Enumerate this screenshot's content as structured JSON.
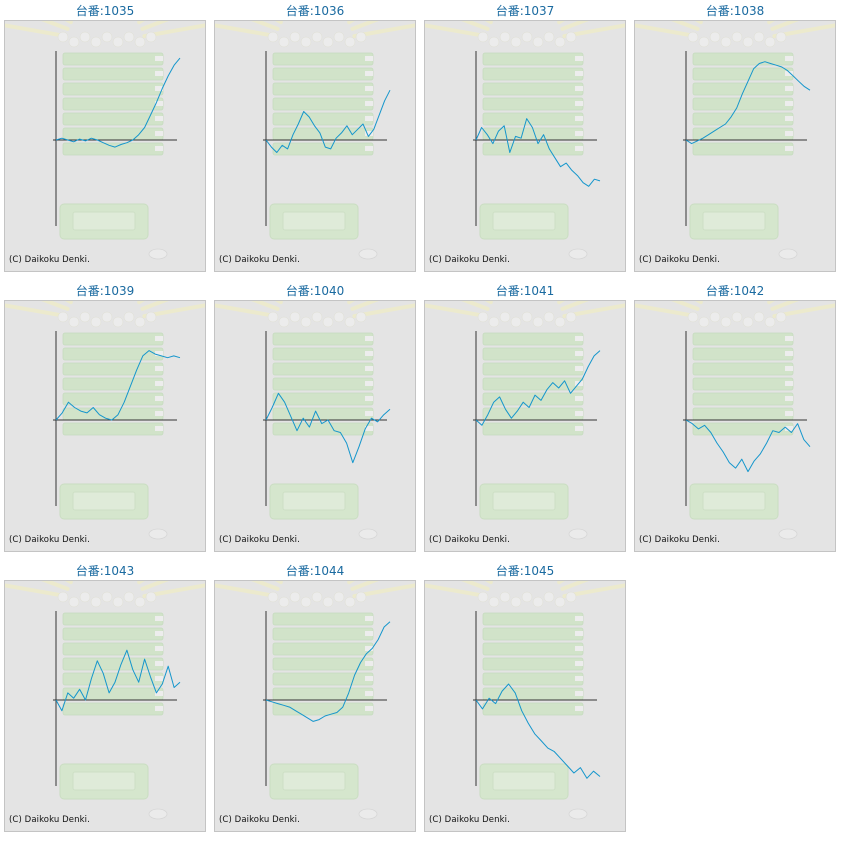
{
  "copyright": "(C) Daikoku Denki.",
  "colors": {
    "title": "#1a6aa0",
    "line": "#1596cc",
    "axis": "#333333",
    "panel_bg": "#e4e4e4",
    "panel_border": "#c4c4c4"
  },
  "chart_data": [
    {
      "type": "line",
      "title": "台番:1035",
      "xlabel": "",
      "ylabel": "",
      "grid": false,
      "values": [
        0,
        2,
        0,
        -2,
        1,
        -1,
        2,
        0,
        -3,
        -6,
        -8,
        -5,
        -3,
        0,
        6,
        14,
        28,
        42,
        58,
        72,
        84,
        92
      ]
    },
    {
      "type": "line",
      "title": "台番:1036",
      "xlabel": "",
      "ylabel": "",
      "grid": false,
      "values": [
        0,
        -8,
        -14,
        -6,
        -10,
        6,
        18,
        32,
        26,
        16,
        8,
        -8,
        -10,
        2,
        8,
        16,
        6,
        12,
        18,
        4,
        12,
        28,
        44,
        56
      ]
    },
    {
      "type": "line",
      "title": "台番:1037",
      "xlabel": "",
      "ylabel": "",
      "grid": false,
      "values": [
        0,
        14,
        6,
        -4,
        10,
        16,
        -14,
        4,
        2,
        24,
        14,
        -4,
        6,
        -10,
        -20,
        -30,
        -26,
        -34,
        -40,
        -48,
        -52,
        -44,
        -46
      ]
    },
    {
      "type": "line",
      "title": "台番:1038",
      "xlabel": "",
      "ylabel": "",
      "grid": false,
      "values": [
        0,
        -4,
        -1,
        2,
        6,
        10,
        14,
        18,
        26,
        36,
        52,
        66,
        80,
        86,
        88,
        86,
        84,
        82,
        78,
        72,
        66,
        60,
        56
      ]
    },
    {
      "type": "line",
      "title": "台番:1039",
      "xlabel": "",
      "ylabel": "",
      "grid": false,
      "values": [
        0,
        8,
        20,
        14,
        10,
        8,
        14,
        6,
        2,
        0,
        6,
        20,
        38,
        56,
        72,
        78,
        74,
        72,
        70,
        72,
        70
      ]
    },
    {
      "type": "line",
      "title": "台番:1040",
      "xlabel": "",
      "ylabel": "",
      "grid": false,
      "values": [
        0,
        14,
        30,
        20,
        4,
        -12,
        2,
        -8,
        10,
        -4,
        0,
        -12,
        -14,
        -26,
        -48,
        -30,
        -10,
        2,
        -2,
        6,
        12
      ]
    },
    {
      "type": "line",
      "title": "台番:1041",
      "xlabel": "",
      "ylabel": "",
      "grid": false,
      "values": [
        0,
        -6,
        6,
        20,
        26,
        12,
        2,
        10,
        20,
        14,
        28,
        22,
        34,
        42,
        36,
        44,
        30,
        38,
        46,
        60,
        72,
        78
      ]
    },
    {
      "type": "line",
      "title": "台番:1042",
      "xlabel": "",
      "ylabel": "",
      "grid": false,
      "values": [
        0,
        -4,
        -10,
        -6,
        -14,
        -26,
        -36,
        -48,
        -54,
        -44,
        -58,
        -46,
        -38,
        -26,
        -12,
        -14,
        -8,
        -14,
        -4,
        -22,
        -30
      ]
    },
    {
      "type": "line",
      "title": "台番:1043",
      "xlabel": "",
      "ylabel": "",
      "grid": false,
      "values": [
        0,
        -12,
        8,
        2,
        12,
        0,
        24,
        44,
        30,
        8,
        20,
        40,
        56,
        34,
        20,
        46,
        26,
        8,
        18,
        38,
        14,
        20
      ]
    },
    {
      "type": "line",
      "title": "台番:1044",
      "xlabel": "",
      "ylabel": "",
      "grid": false,
      "values": [
        0,
        -2,
        -4,
        -6,
        -8,
        -12,
        -16,
        -20,
        -24,
        -22,
        -18,
        -16,
        -14,
        -8,
        8,
        28,
        42,
        52,
        58,
        68,
        82,
        88
      ]
    },
    {
      "type": "line",
      "title": "台番:1045",
      "xlabel": "",
      "ylabel": "",
      "grid": false,
      "values": [
        0,
        -10,
        2,
        -4,
        10,
        18,
        8,
        -12,
        -26,
        -38,
        -46,
        -54,
        -58,
        -66,
        -74,
        -82,
        -76,
        -88,
        -80,
        -86
      ]
    }
  ]
}
